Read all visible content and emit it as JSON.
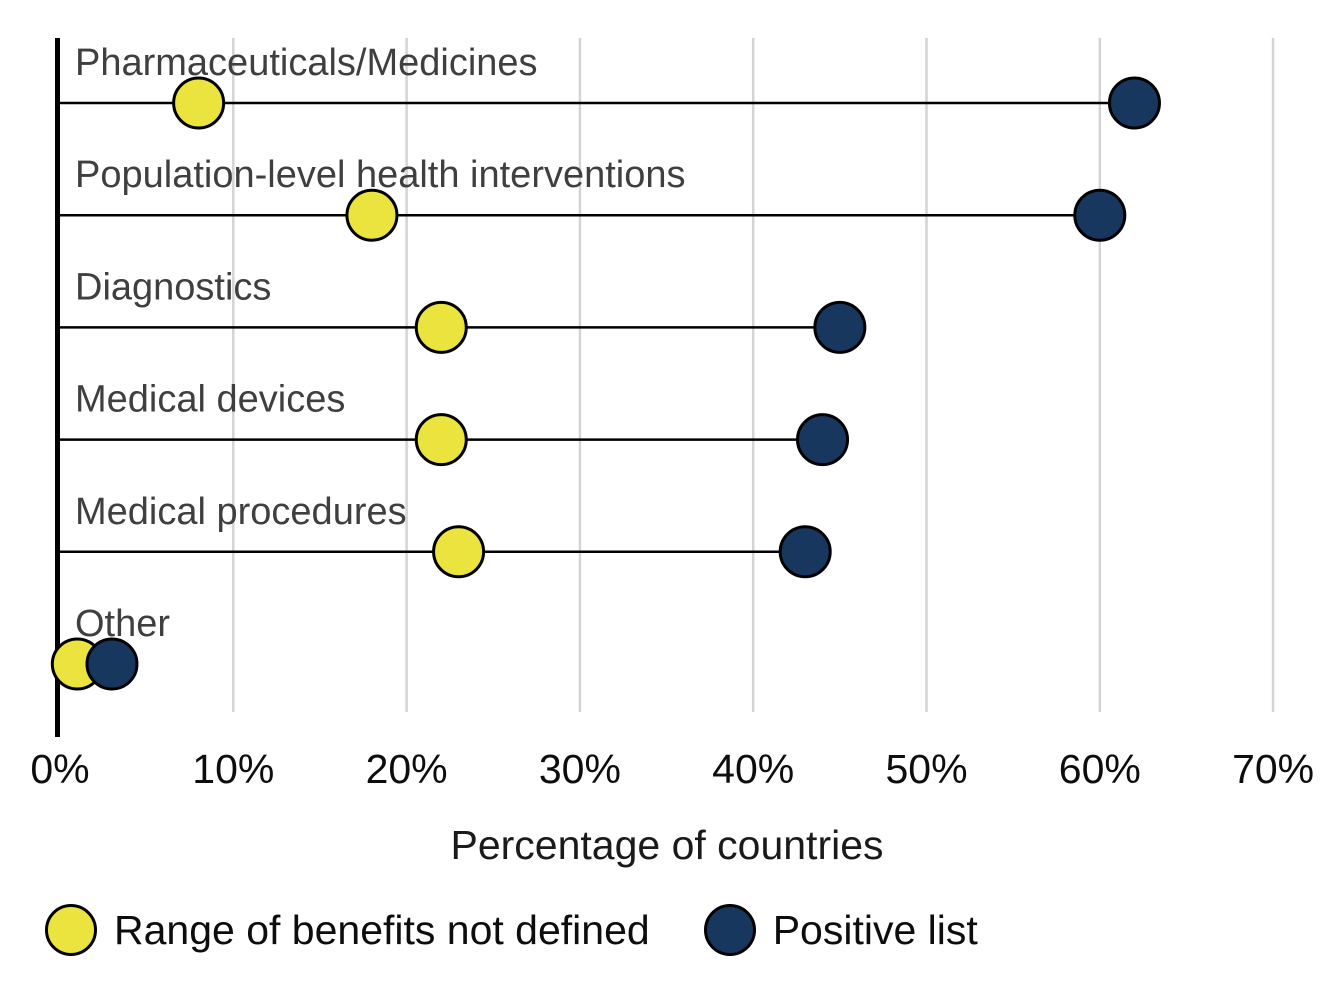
{
  "colors": {
    "series_not_defined": "#ECE43E",
    "series_positive_list": "#17375E",
    "dot_outline": "#000000",
    "gridline": "#D4D4D4",
    "axis_line": "#000000",
    "connector_line": "#000000",
    "category_label": "#3F3F3F",
    "tick_label": "#0D0D0D",
    "background": "#FFFFFF"
  },
  "chart_data": {
    "type": "scatter",
    "subtype": "dumbbell",
    "title": "",
    "categories": [
      "Pharmaceuticals/Medicines",
      "Population-level health interventions",
      "Diagnostics",
      "Medical devices",
      "Medical procedures",
      "Other"
    ],
    "series": [
      {
        "name": "Range of benefits not defined",
        "color_key": "series_not_defined",
        "values": [
          8,
          18,
          22,
          22,
          23,
          1
        ]
      },
      {
        "name": "Positive list",
        "color_key": "series_positive_list",
        "values": [
          62,
          60,
          45,
          44,
          43,
          3
        ]
      }
    ],
    "xlabel": "Percentage of countries",
    "x_ticks": [
      {
        "value": 0,
        "label": "0%"
      },
      {
        "value": 10,
        "label": "10%"
      },
      {
        "value": 20,
        "label": "20%"
      },
      {
        "value": 30,
        "label": "30%"
      },
      {
        "value": 40,
        "label": "40%"
      },
      {
        "value": 50,
        "label": "50%"
      },
      {
        "value": 60,
        "label": "60%"
      },
      {
        "value": 70,
        "label": "70%"
      }
    ],
    "xlim": [
      0,
      70
    ],
    "grid": "vertical-light",
    "legend_position": "bottom-left",
    "value_unit": "%"
  }
}
